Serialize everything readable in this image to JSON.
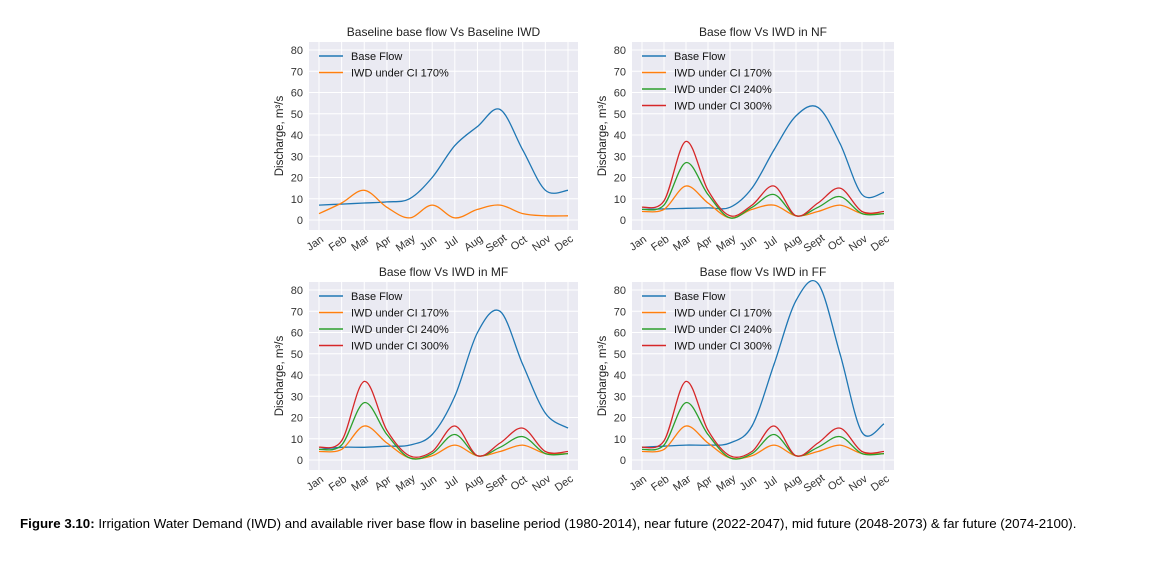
{
  "figure": {
    "caption_label": "Figure 3.10:",
    "caption_text": "Irrigation Water Demand (IWD) and available river base flow in baseline period (1980-2014), near future (2022-2047), mid future (2048-2073) & far future (2074-2100)."
  },
  "colors": {
    "background": "#eaeaf2",
    "grid": "#ffffff",
    "base_flow": "#1f77b4",
    "iwd_170": "#ff7f0e",
    "iwd_240": "#2ca02c",
    "iwd_300": "#d62728"
  },
  "chart_data": [
    {
      "type": "line",
      "title": "Baseline base flow Vs Baseline IWD",
      "ylabel": "Discharge, m³/s",
      "xlabel": "",
      "categories": [
        "Jan",
        "Feb",
        "Mar",
        "Apr",
        "May",
        "Jun",
        "Jul",
        "Aug",
        "Sept",
        "Oct",
        "Nov",
        "Dec"
      ],
      "ylim": [
        0,
        80
      ],
      "yticks": [
        0,
        10,
        20,
        30,
        40,
        50,
        60,
        70,
        80
      ],
      "grid": true,
      "legend_position": "top-left",
      "series": [
        {
          "name": "Base Flow",
          "color": "#1f77b4",
          "values": [
            7,
            7.5,
            8,
            8.5,
            10,
            20,
            35,
            44,
            52,
            33,
            14,
            14
          ]
        },
        {
          "name": "IWD under CI 170%",
          "color": "#ff7f0e",
          "values": [
            3,
            8,
            14,
            6,
            1,
            7,
            1,
            5,
            7,
            3,
            2,
            2
          ]
        }
      ]
    },
    {
      "type": "line",
      "title": "Base flow Vs IWD in NF",
      "ylabel": "Discharge, m³/s",
      "xlabel": "",
      "categories": [
        "Jan",
        "Feb",
        "Mar",
        "Apr",
        "May",
        "Jun",
        "Jul",
        "Aug",
        "Sept",
        "Oct",
        "Nov",
        "Dec"
      ],
      "ylim": [
        0,
        80
      ],
      "yticks": [
        0,
        10,
        20,
        30,
        40,
        50,
        60,
        70,
        80
      ],
      "grid": true,
      "legend_position": "top-left",
      "series": [
        {
          "name": "Base Flow",
          "color": "#1f77b4",
          "values": [
            5,
            5.2,
            5.5,
            5.7,
            6,
            15,
            33,
            49,
            53,
            36,
            12,
            13
          ]
        },
        {
          "name": "IWD under CI 170%",
          "color": "#ff7f0e",
          "values": [
            4,
            5,
            16,
            8,
            1,
            5,
            7,
            2,
            4,
            7,
            3,
            3
          ]
        },
        {
          "name": "IWD under CI 240%",
          "color": "#2ca02c",
          "values": [
            5,
            7,
            27,
            12,
            1,
            6,
            12,
            2,
            6,
            11,
            3,
            3
          ]
        },
        {
          "name": "IWD under CI 300%",
          "color": "#d62728",
          "values": [
            6,
            9,
            37,
            14,
            2,
            7,
            16,
            2,
            8,
            15,
            4,
            4
          ]
        }
      ]
    },
    {
      "type": "line",
      "title": "Base flow Vs IWD in MF",
      "ylabel": "Discharge, m³/s",
      "xlabel": "",
      "categories": [
        "Jan",
        "Feb",
        "Mar",
        "Apr",
        "May",
        "Jun",
        "Jul",
        "Aug",
        "Sept",
        "Oct",
        "Nov",
        "Dec"
      ],
      "ylim": [
        0,
        80
      ],
      "yticks": [
        0,
        10,
        20,
        30,
        40,
        50,
        60,
        70,
        80
      ],
      "grid": true,
      "legend_position": "top-left",
      "series": [
        {
          "name": "Base Flow",
          "color": "#1f77b4",
          "values": [
            5,
            6,
            6,
            6.5,
            7,
            12,
            30,
            60,
            70,
            45,
            22,
            15
          ]
        },
        {
          "name": "IWD under CI 170%",
          "color": "#ff7f0e",
          "values": [
            4,
            5,
            16,
            8,
            1,
            2,
            7,
            2,
            4,
            7,
            3,
            3
          ]
        },
        {
          "name": "IWD under CI 240%",
          "color": "#2ca02c",
          "values": [
            5,
            7,
            27,
            12,
            1,
            3,
            12,
            2,
            6,
            11,
            3,
            3
          ]
        },
        {
          "name": "IWD under CI 300%",
          "color": "#d62728",
          "values": [
            6,
            9,
            37,
            14,
            2,
            4,
            16,
            2,
            8,
            15,
            4,
            4
          ]
        }
      ]
    },
    {
      "type": "line",
      "title": "Base flow Vs IWD in FF",
      "ylabel": "Discharge, m³/s",
      "xlabel": "",
      "categories": [
        "Jan",
        "Feb",
        "Mar",
        "Apr",
        "May",
        "Jun",
        "Jul",
        "Aug",
        "Sept",
        "Oct",
        "Nov",
        "Dec"
      ],
      "ylim": [
        0,
        80
      ],
      "yticks": [
        0,
        10,
        20,
        30,
        40,
        50,
        60,
        70,
        80
      ],
      "grid": true,
      "legend_position": "top-left",
      "series": [
        {
          "name": "Base Flow",
          "color": "#1f77b4",
          "values": [
            6,
            6.5,
            7,
            7,
            8,
            16,
            45,
            75,
            83,
            50,
            13,
            17
          ]
        },
        {
          "name": "IWD under CI 170%",
          "color": "#ff7f0e",
          "values": [
            4,
            5,
            16,
            8,
            1,
            2,
            7,
            2,
            4,
            7,
            3,
            3
          ]
        },
        {
          "name": "IWD under CI 240%",
          "color": "#2ca02c",
          "values": [
            5,
            7,
            27,
            12,
            1,
            3,
            12,
            2,
            6,
            11,
            3,
            3
          ]
        },
        {
          "name": "IWD under CI 300%",
          "color": "#d62728",
          "values": [
            6,
            9,
            37,
            14,
            2,
            4,
            16,
            2,
            8,
            15,
            4,
            4
          ]
        }
      ]
    }
  ]
}
